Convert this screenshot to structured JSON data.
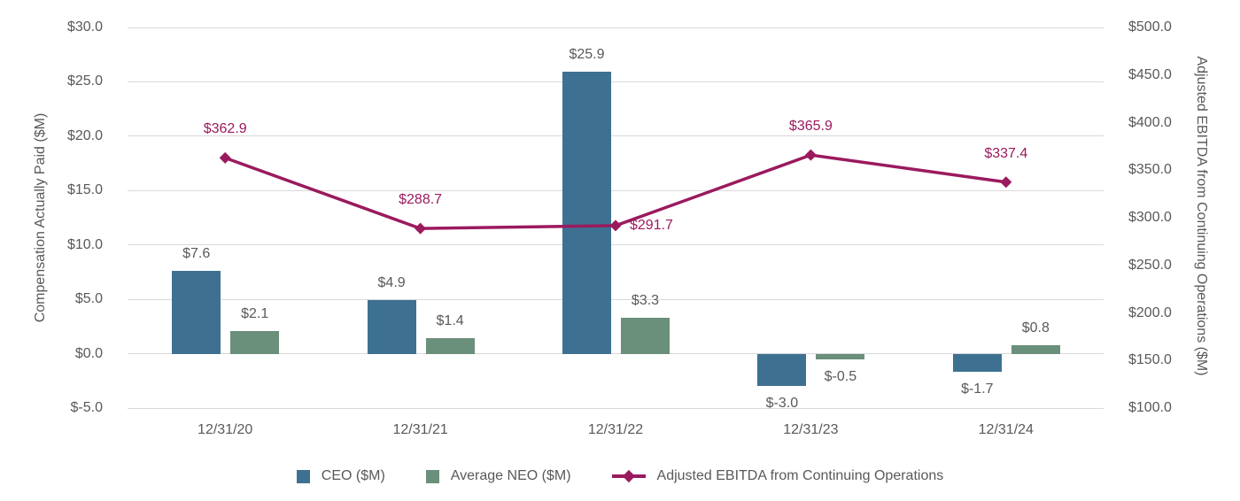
{
  "chart_data": {
    "type": "bar",
    "subtype": "combo-bar-line-dual-axis",
    "categories": [
      "12/31/20",
      "12/31/21",
      "12/31/22",
      "12/31/23",
      "12/31/24"
    ],
    "series": [
      {
        "name": "CEO ($M)",
        "chart_type": "bar",
        "axis": "left",
        "values": [
          7.6,
          4.9,
          25.9,
          -3.0,
          -1.7
        ],
        "labels": [
          "$7.6",
          "$4.9",
          "$25.9",
          "$-3.0",
          "$-1.7"
        ]
      },
      {
        "name": "Average NEO ($M)",
        "chart_type": "bar",
        "axis": "left",
        "values": [
          2.1,
          1.4,
          3.3,
          -0.5,
          0.8
        ],
        "labels": [
          "$2.1",
          "$1.4",
          "$3.3",
          "$-0.5",
          "$0.8"
        ]
      },
      {
        "name": "Adjusted EBITDA from Continuing Operations",
        "chart_type": "line",
        "marker": "diamond",
        "axis": "right",
        "values": [
          362.9,
          288.7,
          291.7,
          365.9,
          337.4
        ],
        "labels": [
          "$362.9",
          "$288.7",
          "$291.7",
          "$365.9",
          "$337.4"
        ],
        "label_positions": [
          "above",
          "above",
          "right",
          "above",
          "above"
        ]
      }
    ],
    "left_axis": {
      "title": "Compensation Actually Paid ($M)",
      "min": -5,
      "max": 30,
      "step": 5,
      "tick_labels": [
        "$30.0",
        "$25.0",
        "$20.0",
        "$15.0",
        "$10.0",
        "$5.0",
        "$0.0",
        "$-5.0"
      ]
    },
    "right_axis": {
      "title": "Adjusted EBITDA from Continuing Operations ($M)",
      "min": 100,
      "max": 500,
      "step": 50,
      "tick_labels": [
        "$500.0",
        "$450.0",
        "$400.0",
        "$350.0",
        "$300.0",
        "$250.0",
        "$200.0",
        "$150.0",
        "$100.0"
      ]
    },
    "grid": "horizontal-major-left-axis",
    "legend_position": "bottom"
  },
  "legend": {
    "items": [
      {
        "label": "CEO ($M)",
        "swatch": "square"
      },
      {
        "label": "Average NEO ($M)",
        "swatch": "square"
      },
      {
        "label": "Adjusted EBITDA from Continuing Operations",
        "swatch": "line-diamond"
      }
    ]
  },
  "colors": {
    "ceo_bar": "#3E7191",
    "neo_bar": "#6A8F7A",
    "ebitda_line": "#9B1A5E",
    "text": "#595959",
    "gridline": "#D9D9D9",
    "background": "#FFFFFF"
  }
}
